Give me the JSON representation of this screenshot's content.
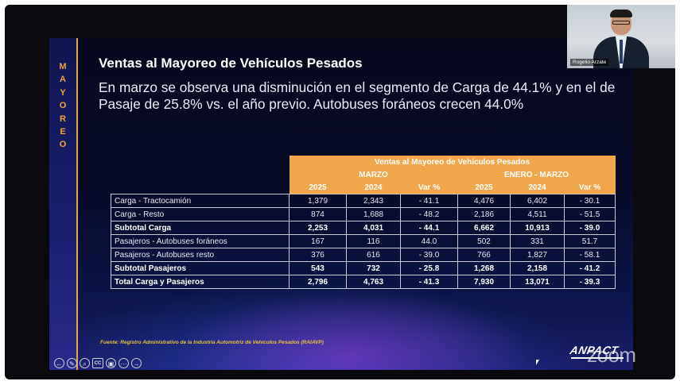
{
  "sidebar": {
    "letters": [
      "M",
      "A",
      "Y",
      "O",
      "R",
      "E",
      "O"
    ]
  },
  "slide": {
    "title": "Ventas al Mayoreo de Vehículos Pesados",
    "subtitle": "En marzo se observa una disminución en el segmento de Carga de 44.1% y en el de Pasaje de 25.8% vs. el año previo. Autobuses foráneos crecen 44.0%",
    "source": "Fuente: Registro Administrativo de la Industria Automotriz de Vehículos Pesados (RAIAVP)",
    "logo_text": "ANPACT"
  },
  "table": {
    "main_header": "Ventas al Mayoreo de Vehículos Pesados",
    "group_marzo": "MARZO",
    "group_enero_marzo": "ENERO - MARZO",
    "columns": [
      "2025",
      "2024",
      "Var %",
      "2025",
      "2024",
      "Var %"
    ],
    "rows": [
      {
        "label": "Carga - Tractocamión",
        "v": [
          "1,379",
          "2,343",
          "- 41.1",
          "4,476",
          "6,402",
          "- 30.1"
        ],
        "bold": false
      },
      {
        "label": "Carga - Resto",
        "v": [
          "874",
          "1,688",
          "- 48.2",
          "2,186",
          "4,511",
          "- 51.5"
        ],
        "bold": false
      },
      {
        "label": "Subtotal Carga",
        "v": [
          "2,253",
          "4,031",
          "- 44.1",
          "6,662",
          "10,913",
          "- 39.0"
        ],
        "bold": true
      },
      {
        "label": "Pasajeros - Autobuses foráneos",
        "v": [
          "167",
          "116",
          "44.0",
          "502",
          "331",
          "51.7"
        ],
        "bold": false
      },
      {
        "label": "Pasajeros - Autobuses resto",
        "v": [
          "376",
          "616",
          "- 39.0",
          "766",
          "1,827",
          "- 58.1"
        ],
        "bold": false
      },
      {
        "label": "Subtotal Pasajeros",
        "v": [
          "543",
          "732",
          "- 25.8",
          "1,268",
          "2,158",
          "- 41.2"
        ],
        "bold": true
      },
      {
        "label": "Total Carga y Pasajeros",
        "v": [
          "2,796",
          "4,763",
          "- 41.3",
          "7,930",
          "13,071",
          "- 39.3"
        ],
        "bold": true
      }
    ]
  },
  "controls": {
    "icons": [
      "arrow-left-icon",
      "pen-icon",
      "zoom-in-icon",
      "captions-icon",
      "slides-icon",
      "more-icon",
      "arrow-right-icon"
    ],
    "glyphs": [
      "←",
      "✎",
      "⌕",
      "CC",
      "▣",
      "⋯",
      "→"
    ]
  },
  "participant": {
    "name": "Rogelio Arzate"
  },
  "zoom_watermark": "zoom",
  "colors": {
    "accent": "#f2a64b",
    "background": "#0b0b0f",
    "slide_dark": "#070a26"
  }
}
